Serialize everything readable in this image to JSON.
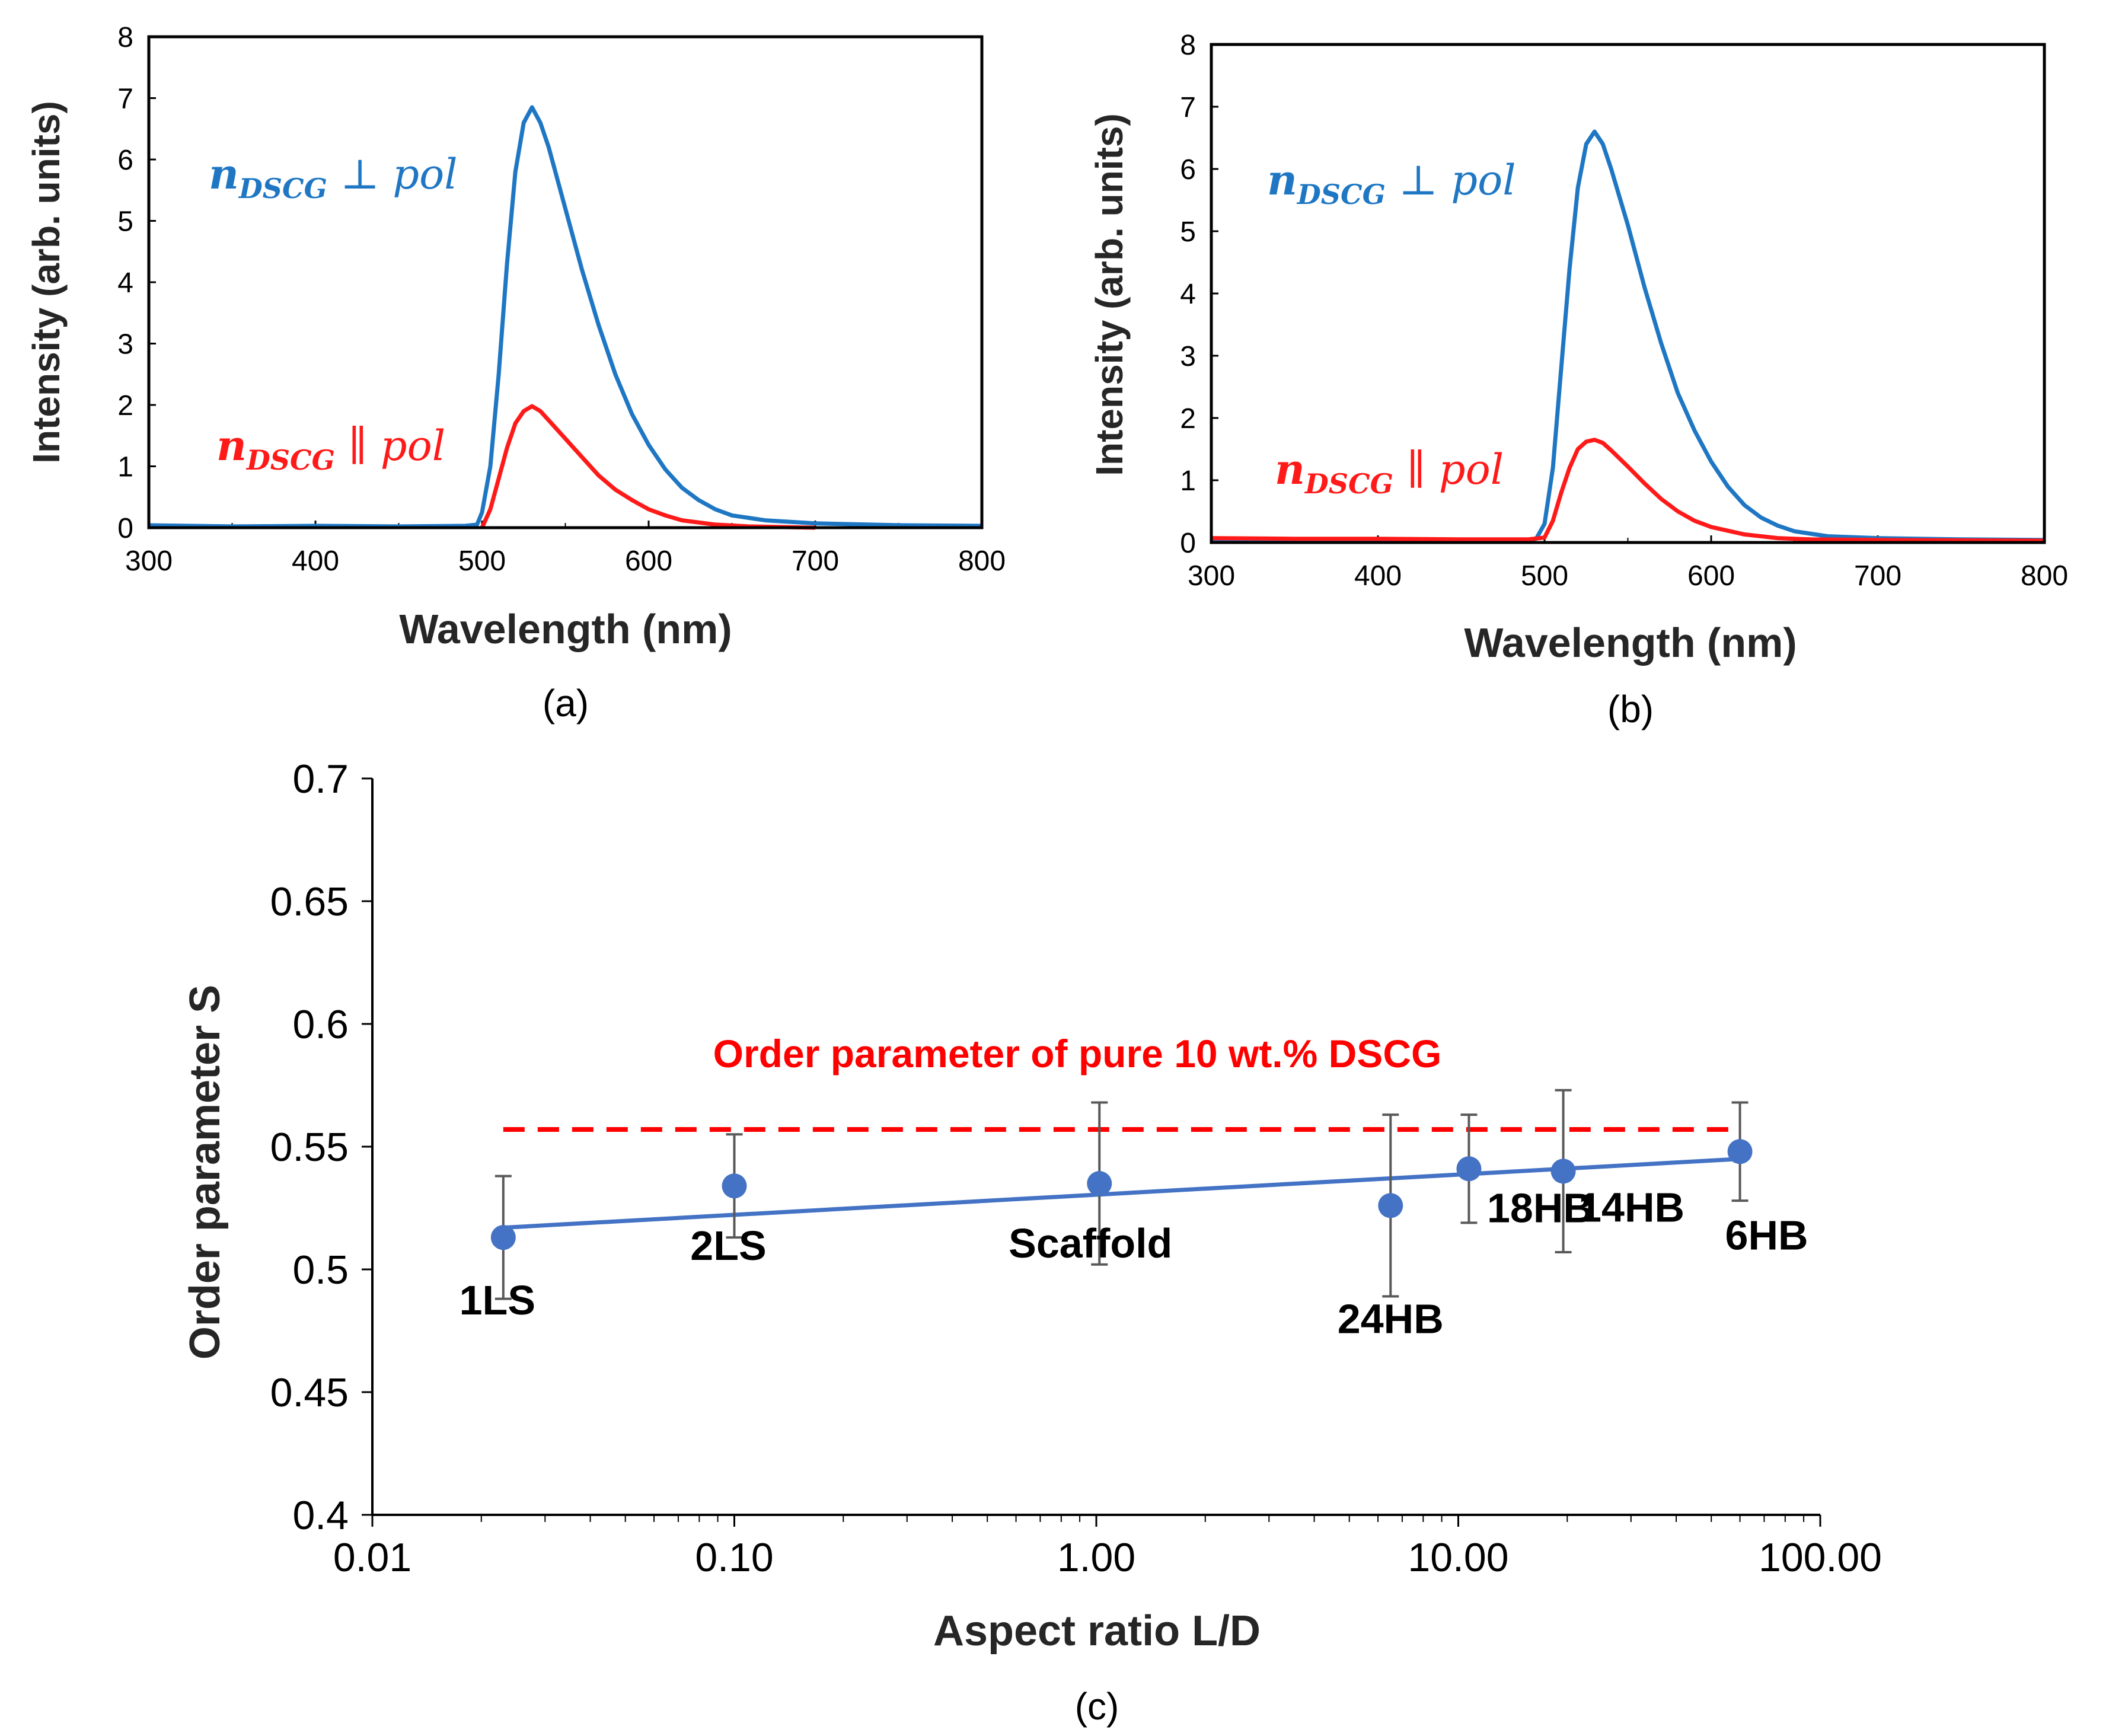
{
  "colors": {
    "blue": "#1f77c4",
    "red": "#ff1a1a",
    "fit_blue": "#4472c4",
    "error_bar": "#595959",
    "ref_red": "#ff0000"
  },
  "chart_data": [
    {
      "id": "a",
      "type": "line",
      "caption": "(a)",
      "xlabel": "Wavelength (nm)",
      "ylabel": "Intensity (arb. units)",
      "xlim": [
        300,
        800
      ],
      "ylim": [
        0,
        8
      ],
      "xticks": [
        300,
        400,
        500,
        600,
        700,
        800
      ],
      "yticks": [
        0,
        1,
        2,
        3,
        4,
        5,
        6,
        7,
        8
      ],
      "series": [
        {
          "name": "perp",
          "color_key": "blue",
          "points": [
            [
              300,
              0.04
            ],
            [
              350,
              0.02
            ],
            [
              400,
              0.03
            ],
            [
              450,
              0.02
            ],
            [
              490,
              0.03
            ],
            [
              497,
              0.05
            ],
            [
              500,
              0.25
            ],
            [
              505,
              1.0
            ],
            [
              510,
              2.5
            ],
            [
              515,
              4.3
            ],
            [
              520,
              5.8
            ],
            [
              525,
              6.6
            ],
            [
              530,
              6.85
            ],
            [
              535,
              6.6
            ],
            [
              540,
              6.2
            ],
            [
              550,
              5.2
            ],
            [
              560,
              4.2
            ],
            [
              570,
              3.3
            ],
            [
              580,
              2.5
            ],
            [
              590,
              1.85
            ],
            [
              600,
              1.35
            ],
            [
              610,
              0.95
            ],
            [
              620,
              0.65
            ],
            [
              630,
              0.45
            ],
            [
              640,
              0.3
            ],
            [
              650,
              0.2
            ],
            [
              670,
              0.12
            ],
            [
              700,
              0.07
            ],
            [
              750,
              0.04
            ],
            [
              800,
              0.03
            ]
          ]
        },
        {
          "name": "parallel",
          "color_key": "red",
          "points": [
            [
              500,
              0.0
            ],
            [
              505,
              0.3
            ],
            [
              510,
              0.8
            ],
            [
              515,
              1.3
            ],
            [
              520,
              1.7
            ],
            [
              525,
              1.9
            ],
            [
              530,
              1.98
            ],
            [
              535,
              1.9
            ],
            [
              540,
              1.75
            ],
            [
              550,
              1.45
            ],
            [
              560,
              1.15
            ],
            [
              570,
              0.85
            ],
            [
              580,
              0.62
            ],
            [
              590,
              0.45
            ],
            [
              600,
              0.3
            ],
            [
              610,
              0.2
            ],
            [
              620,
              0.12
            ],
            [
              640,
              0.05
            ],
            [
              660,
              0.02
            ],
            [
              700,
              0.0
            ]
          ]
        }
      ],
      "annotations": [
        {
          "color_key": "blue",
          "main": "n",
          "sub": "DSCG",
          "rest": " ⊥ pol"
        },
        {
          "color_key": "red",
          "main": "n",
          "sub": "DSCG",
          "rest": " ∥ pol"
        }
      ]
    },
    {
      "id": "b",
      "type": "line",
      "caption": "(b)",
      "xlabel": "Wavelength (nm)",
      "ylabel": "Intensity (arb. units)",
      "xlim": [
        300,
        800
      ],
      "ylim": [
        0,
        8
      ],
      "xticks": [
        300,
        400,
        500,
        600,
        700,
        800
      ],
      "yticks": [
        0,
        1,
        2,
        3,
        4,
        5,
        6,
        7,
        8
      ],
      "series": [
        {
          "name": "perp",
          "color_key": "blue",
          "points": [
            [
              300,
              0.05
            ],
            [
              350,
              0.04
            ],
            [
              400,
              0.05
            ],
            [
              450,
              0.04
            ],
            [
              490,
              0.04
            ],
            [
              495,
              0.06
            ],
            [
              500,
              0.3
            ],
            [
              505,
              1.2
            ],
            [
              510,
              2.8
            ],
            [
              515,
              4.4
            ],
            [
              520,
              5.7
            ],
            [
              525,
              6.4
            ],
            [
              530,
              6.6
            ],
            [
              535,
              6.4
            ],
            [
              540,
              6.0
            ],
            [
              550,
              5.1
            ],
            [
              560,
              4.1
            ],
            [
              570,
              3.2
            ],
            [
              580,
              2.4
            ],
            [
              590,
              1.8
            ],
            [
              600,
              1.3
            ],
            [
              610,
              0.9
            ],
            [
              620,
              0.6
            ],
            [
              630,
              0.4
            ],
            [
              640,
              0.27
            ],
            [
              650,
              0.18
            ],
            [
              670,
              0.1
            ],
            [
              700,
              0.07
            ],
            [
              750,
              0.05
            ],
            [
              800,
              0.04
            ]
          ]
        },
        {
          "name": "parallel",
          "color_key": "red",
          "points": [
            [
              300,
              0.07
            ],
            [
              350,
              0.06
            ],
            [
              400,
              0.06
            ],
            [
              450,
              0.05
            ],
            [
              490,
              0.05
            ],
            [
              500,
              0.08
            ],
            [
              505,
              0.35
            ],
            [
              510,
              0.8
            ],
            [
              515,
              1.2
            ],
            [
              520,
              1.5
            ],
            [
              525,
              1.62
            ],
            [
              530,
              1.65
            ],
            [
              535,
              1.6
            ],
            [
              540,
              1.48
            ],
            [
              550,
              1.22
            ],
            [
              560,
              0.95
            ],
            [
              570,
              0.7
            ],
            [
              580,
              0.5
            ],
            [
              590,
              0.35
            ],
            [
              600,
              0.25
            ],
            [
              620,
              0.13
            ],
            [
              640,
              0.07
            ],
            [
              660,
              0.05
            ],
            [
              700,
              0.04
            ],
            [
              800,
              0.03
            ]
          ]
        }
      ],
      "annotations": [
        {
          "color_key": "blue",
          "main": "n",
          "sub": "DSCG",
          "rest": " ⊥ pol"
        },
        {
          "color_key": "red",
          "main": "n",
          "sub": "DSCG",
          "rest": " ∥ pol"
        }
      ]
    },
    {
      "id": "c",
      "type": "scatter",
      "caption": "(c)",
      "xlabel": "Aspect ratio L/D",
      "ylabel": "Order parameter S",
      "xscale": "log",
      "xlim": [
        0.01,
        100
      ],
      "ylim": [
        0.4,
        0.7
      ],
      "xticks": [
        0.01,
        0.1,
        1,
        10,
        100
      ],
      "xtick_labels": [
        "0.01",
        "0.10",
        "1.00",
        "10.00",
        "100.00"
      ],
      "yticks": [
        0.4,
        0.45,
        0.5,
        0.55,
        0.6,
        0.65,
        0.7
      ],
      "ytick_labels": [
        "0.4",
        "0.45",
        "0.5",
        "0.55",
        "0.6",
        "0.65",
        "0.7"
      ],
      "points": [
        {
          "label": "1LS",
          "x": 0.023,
          "y": 0.513,
          "err_low": 0.488,
          "err_high": 0.538
        },
        {
          "label": "2LS",
          "x": 0.1,
          "y": 0.534,
          "err_low": 0.513,
          "err_high": 0.555
        },
        {
          "label": "Scaffold",
          "x": 1.02,
          "y": 0.535,
          "err_low": 0.502,
          "err_high": 0.568
        },
        {
          "label": "24HB",
          "x": 6.5,
          "y": 0.526,
          "err_low": 0.489,
          "err_high": 0.563
        },
        {
          "label": "18HB",
          "x": 10.7,
          "y": 0.541,
          "err_low": 0.519,
          "err_high": 0.563
        },
        {
          "label": "14HB",
          "x": 19.5,
          "y": 0.54,
          "err_low": 0.507,
          "err_high": 0.573
        },
        {
          "label": "6HB",
          "x": 60,
          "y": 0.548,
          "err_low": 0.528,
          "err_high": 0.568
        }
      ],
      "fit_line": {
        "x": [
          0.023,
          60
        ],
        "y": [
          0.517,
          0.545
        ]
      },
      "reference": {
        "label": "Order parameter  of pure 10 wt.% DSCG",
        "x": [
          0.023,
          60
        ],
        "y": 0.557
      }
    }
  ]
}
